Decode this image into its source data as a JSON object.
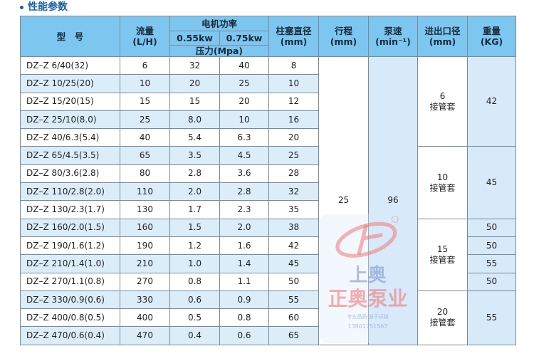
{
  "section_title": "性能参数",
  "header": {
    "model": "型　号",
    "flow": "流量",
    "flow_unit": "(L/H)",
    "motor_power": "电机功率",
    "power_055": "0.55kw",
    "power_075": "0.75kw",
    "pressure": "压力(Mpa)",
    "plunger": "柱塞直径",
    "plunger_unit": "(mm)",
    "stroke": "行程",
    "stroke_unit": "(mm)",
    "speed": "泵速",
    "speed_unit": "(min⁻¹)",
    "port": "进出口径",
    "port_unit": "(mm)",
    "weight": "重量",
    "weight_unit": "(KG)"
  },
  "rows": [
    {
      "model": "DZ–Z 6/40(32)",
      "flow": "6",
      "p055": "32",
      "p075": "40",
      "plunger": "8"
    },
    {
      "model": "DZ–Z 10/25(20)",
      "flow": "10",
      "p055": "20",
      "p075": "25",
      "plunger": "10"
    },
    {
      "model": "DZ–Z 15/20(15)",
      "flow": "15",
      "p055": "15",
      "p075": "20",
      "plunger": "12"
    },
    {
      "model": "DZ–Z 25/10(8.0)",
      "flow": "25",
      "p055": "8.0",
      "p075": "10",
      "plunger": "16"
    },
    {
      "model": "DZ–Z 40/6.3(5.4)",
      "flow": "40",
      "p055": "5.4",
      "p075": "6.3",
      "plunger": "20"
    },
    {
      "model": "DZ–Z 65/4.5(3.5)",
      "flow": "65",
      "p055": "3.5",
      "p075": "4.5",
      "plunger": "25"
    },
    {
      "model": "DZ–Z 80/3.6(2.8)",
      "flow": "80",
      "p055": "2.8",
      "p075": "3.6",
      "plunger": "28"
    },
    {
      "model": "DZ–Z 110/2.8(2.0)",
      "flow": "110",
      "p055": "2.0",
      "p075": "2.8",
      "plunger": "32"
    },
    {
      "model": "DZ–Z 130/2.3(1.7)",
      "flow": "130",
      "p055": "1.7",
      "p075": "2.3",
      "plunger": "35"
    },
    {
      "model": "DZ–Z 160/2.0(1.5)",
      "flow": "160",
      "p055": "1.5",
      "p075": "2.0",
      "plunger": "38"
    },
    {
      "model": "DZ–Z 190/1.6(1.2)",
      "flow": "190",
      "p055": "1.2",
      "p075": "1.6",
      "plunger": "42"
    },
    {
      "model": "DZ–Z 210/1.4(1.0)",
      "flow": "210",
      "p055": "1.0",
      "p075": "1.4",
      "plunger": "45"
    },
    {
      "model": "DZ–Z 270/1.1(0.8)",
      "flow": "270",
      "p055": "0.8",
      "p075": "1.1",
      "plunger": "50"
    },
    {
      "model": "DZ–Z 330/0.9(0.6)",
      "flow": "330",
      "p055": "0.6",
      "p075": "0.9",
      "plunger": "55"
    },
    {
      "model": "DZ–Z 400/0.8(0.5)",
      "flow": "400",
      "p055": "0.5",
      "p075": "0.8",
      "plunger": "60"
    },
    {
      "model": "DZ–Z 470/0.6(0.4)",
      "flow": "470",
      "p055": "0.4",
      "p075": "0.6",
      "plunger": "65"
    }
  ],
  "stroke": "25",
  "speed": "96",
  "port_groups": [
    {
      "size": "6",
      "note": "接管套",
      "span": 5
    },
    {
      "size": "10",
      "note": "接管套",
      "span": 4
    },
    {
      "size": "15",
      "note": "接管套",
      "span": 4
    },
    {
      "size": "20",
      "note": "接管套",
      "span": 3
    }
  ],
  "weight_groups": [
    {
      "value": "42",
      "span": 5
    },
    {
      "value": "45",
      "span": 4
    },
    {
      "value": "50",
      "span": 1
    },
    {
      "value": "50",
      "span": 1
    },
    {
      "value": "55",
      "span": 1
    },
    {
      "value": "50",
      "span": 1
    },
    {
      "value": "55",
      "span": 3
    }
  ],
  "watermark": {
    "brand_top": "上奥",
    "brand": "正奥泵业",
    "slogan": "专业品质·源于卓越",
    "phone": "13801751567"
  }
}
